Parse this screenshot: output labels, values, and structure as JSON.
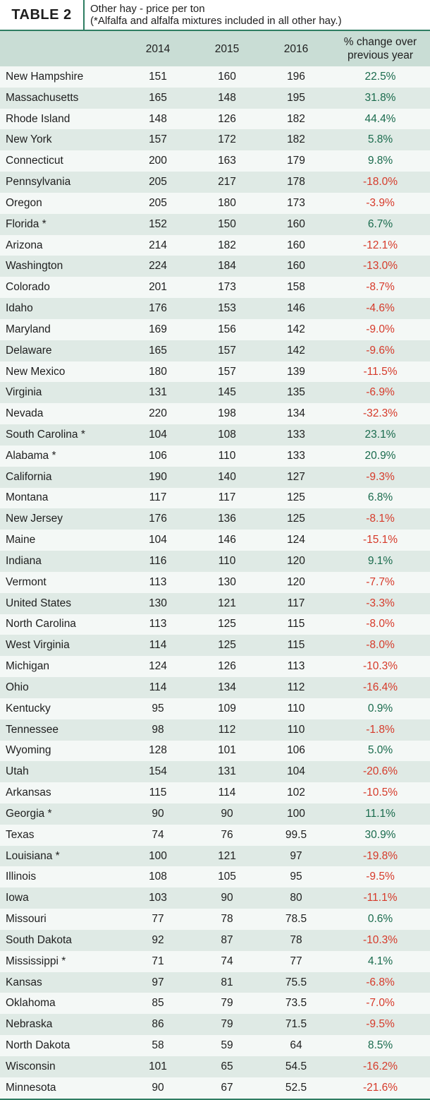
{
  "header": {
    "tag": "TABLE 2",
    "title": "Other hay - price per ton",
    "subtitle": "(*Alfalfa and alfalfa mixtures included in all other hay.)"
  },
  "columns": [
    "",
    "2014",
    "2015",
    "2016",
    "% change over previous year"
  ],
  "colors": {
    "accent": "#2e7d62",
    "header_bg": "#c9ddd5",
    "positive": "#1a6b4d",
    "negative": "#d63a2a"
  },
  "rows": [
    {
      "state": "New Hampshire",
      "y2014": "151",
      "y2015": "160",
      "y2016": "196",
      "change": "22.5%"
    },
    {
      "state": "Massachusetts",
      "y2014": "165",
      "y2015": "148",
      "y2016": "195",
      "change": "31.8%"
    },
    {
      "state": "Rhode Island",
      "y2014": "148",
      "y2015": "126",
      "y2016": "182",
      "change": "44.4%"
    },
    {
      "state": "New York",
      "y2014": "157",
      "y2015": "172",
      "y2016": "182",
      "change": "5.8%"
    },
    {
      "state": "Connecticut",
      "y2014": "200",
      "y2015": "163",
      "y2016": "179",
      "change": "9.8%"
    },
    {
      "state": "Pennsylvania",
      "y2014": "205",
      "y2015": "217",
      "y2016": "178",
      "change": "-18.0%"
    },
    {
      "state": "Oregon",
      "y2014": "205",
      "y2015": "180",
      "y2016": "173",
      "change": "-3.9%"
    },
    {
      "state": "Florida *",
      "y2014": "152",
      "y2015": "150",
      "y2016": "160",
      "change": "6.7%"
    },
    {
      "state": "Arizona",
      "y2014": "214",
      "y2015": "182",
      "y2016": "160",
      "change": "-12.1%"
    },
    {
      "state": "Washington",
      "y2014": "224",
      "y2015": "184",
      "y2016": "160",
      "change": "-13.0%"
    },
    {
      "state": "Colorado",
      "y2014": "201",
      "y2015": "173",
      "y2016": "158",
      "change": "-8.7%"
    },
    {
      "state": "Idaho",
      "y2014": "176",
      "y2015": "153",
      "y2016": "146",
      "change": "-4.6%"
    },
    {
      "state": "Maryland",
      "y2014": "169",
      "y2015": "156",
      "y2016": "142",
      "change": "-9.0%"
    },
    {
      "state": "Delaware",
      "y2014": "165",
      "y2015": "157",
      "y2016": "142",
      "change": "-9.6%"
    },
    {
      "state": "New Mexico",
      "y2014": "180",
      "y2015": "157",
      "y2016": "139",
      "change": "-11.5%"
    },
    {
      "state": "Virginia",
      "y2014": "131",
      "y2015": "145",
      "y2016": "135",
      "change": "-6.9%"
    },
    {
      "state": "Nevada",
      "y2014": "220",
      "y2015": "198",
      "y2016": "134",
      "change": "-32.3%"
    },
    {
      "state": "South Carolina *",
      "y2014": "104",
      "y2015": "108",
      "y2016": "133",
      "change": "23.1%"
    },
    {
      "state": "Alabama *",
      "y2014": "106",
      "y2015": "110",
      "y2016": "133",
      "change": "20.9%"
    },
    {
      "state": "California",
      "y2014": "190",
      "y2015": "140",
      "y2016": "127",
      "change": "-9.3%"
    },
    {
      "state": "Montana",
      "y2014": "117",
      "y2015": "117",
      "y2016": "125",
      "change": "6.8%"
    },
    {
      "state": "New Jersey",
      "y2014": "176",
      "y2015": "136",
      "y2016": "125",
      "change": "-8.1%"
    },
    {
      "state": "Maine",
      "y2014": "104",
      "y2015": "146",
      "y2016": "124",
      "change": "-15.1%"
    },
    {
      "state": "Indiana",
      "y2014": "116",
      "y2015": "110",
      "y2016": "120",
      "change": "9.1%"
    },
    {
      "state": "Vermont",
      "y2014": "113",
      "y2015": "130",
      "y2016": "120",
      "change": "-7.7%"
    },
    {
      "state": "United States",
      "y2014": "130",
      "y2015": "121",
      "y2016": "117",
      "change": "-3.3%"
    },
    {
      "state": "North Carolina",
      "y2014": "113",
      "y2015": "125",
      "y2016": "115",
      "change": "-8.0%"
    },
    {
      "state": "West Virginia",
      "y2014": "114",
      "y2015": "125",
      "y2016": "115",
      "change": "-8.0%"
    },
    {
      "state": "Michigan",
      "y2014": "124",
      "y2015": "126",
      "y2016": "113",
      "change": "-10.3%"
    },
    {
      "state": "Ohio",
      "y2014": "114",
      "y2015": "134",
      "y2016": "112",
      "change": "-16.4%"
    },
    {
      "state": "Kentucky",
      "y2014": "95",
      "y2015": "109",
      "y2016": "110",
      "change": "0.9%"
    },
    {
      "state": "Tennessee",
      "y2014": "98",
      "y2015": "112",
      "y2016": "110",
      "change": "-1.8%"
    },
    {
      "state": "Wyoming",
      "y2014": "128",
      "y2015": "101",
      "y2016": "106",
      "change": "5.0%"
    },
    {
      "state": "Utah",
      "y2014": "154",
      "y2015": "131",
      "y2016": "104",
      "change": "-20.6%"
    },
    {
      "state": "Arkansas",
      "y2014": "115",
      "y2015": "114",
      "y2016": "102",
      "change": "-10.5%"
    },
    {
      "state": "Georgia *",
      "y2014": "90",
      "y2015": "90",
      "y2016": "100",
      "change": "11.1%"
    },
    {
      "state": "Texas",
      "y2014": "74",
      "y2015": "76",
      "y2016": "99.5",
      "change": "30.9%"
    },
    {
      "state": "Louisiana *",
      "y2014": "100",
      "y2015": "121",
      "y2016": "97",
      "change": "-19.8%"
    },
    {
      "state": "Illinois",
      "y2014": "108",
      "y2015": "105",
      "y2016": "95",
      "change": "-9.5%"
    },
    {
      "state": "Iowa",
      "y2014": "103",
      "y2015": "90",
      "y2016": "80",
      "change": "-11.1%"
    },
    {
      "state": "Missouri",
      "y2014": "77",
      "y2015": "78",
      "y2016": "78.5",
      "change": "0.6%"
    },
    {
      "state": "South Dakota",
      "y2014": "92",
      "y2015": "87",
      "y2016": "78",
      "change": "-10.3%"
    },
    {
      "state": "Mississippi *",
      "y2014": "71",
      "y2015": "74",
      "y2016": "77",
      "change": "4.1%"
    },
    {
      "state": "Kansas",
      "y2014": "97",
      "y2015": "81",
      "y2016": "75.5",
      "change": "-6.8%"
    },
    {
      "state": "Oklahoma",
      "y2014": "85",
      "y2015": "79",
      "y2016": "73.5",
      "change": "-7.0%"
    },
    {
      "state": "Nebraska",
      "y2014": "86",
      "y2015": "79",
      "y2016": "71.5",
      "change": "-9.5%"
    },
    {
      "state": "North Dakota",
      "y2014": "58",
      "y2015": "59",
      "y2016": "64",
      "change": "8.5%"
    },
    {
      "state": "Wisconsin",
      "y2014": "101",
      "y2015": "65",
      "y2016": "54.5",
      "change": "-16.2%"
    },
    {
      "state": "Minnesota",
      "y2014": "90",
      "y2015": "67",
      "y2016": "52.5",
      "change": "-21.6%"
    }
  ]
}
